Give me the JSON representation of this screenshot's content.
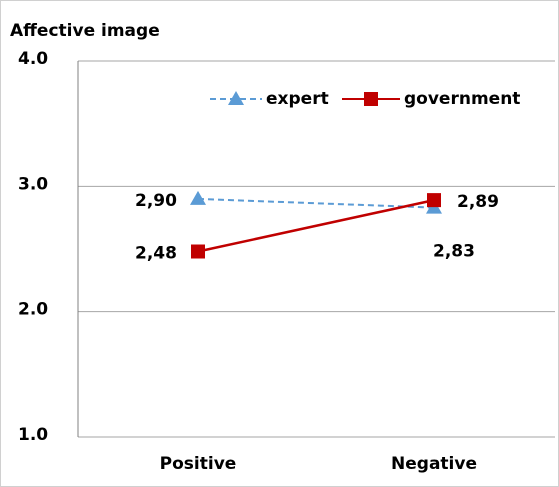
{
  "chart_data": {
    "type": "line",
    "title": "Affective image",
    "categories": [
      "Positive",
      "Negative"
    ],
    "series": [
      {
        "name": "expert",
        "color": "#5b9bd5",
        "dashed": true,
        "marker": "triangle",
        "values": [
          2.9,
          2.83
        ],
        "value_labels": [
          "2,90",
          "2,83"
        ]
      },
      {
        "name": "government",
        "color": "#c00000",
        "dashed": false,
        "marker": "square",
        "values": [
          2.48,
          2.89
        ],
        "value_labels": [
          "2,48",
          "2,89"
        ]
      }
    ],
    "ylim": [
      1,
      4
    ],
    "yticks": [
      {
        "value": 1,
        "label": "1.0"
      },
      {
        "value": 2,
        "label": "2.0"
      },
      {
        "value": 3,
        "label": "3.0"
      },
      {
        "value": 4,
        "label": "4.0"
      }
    ],
    "grid": true,
    "legend": "top"
  }
}
